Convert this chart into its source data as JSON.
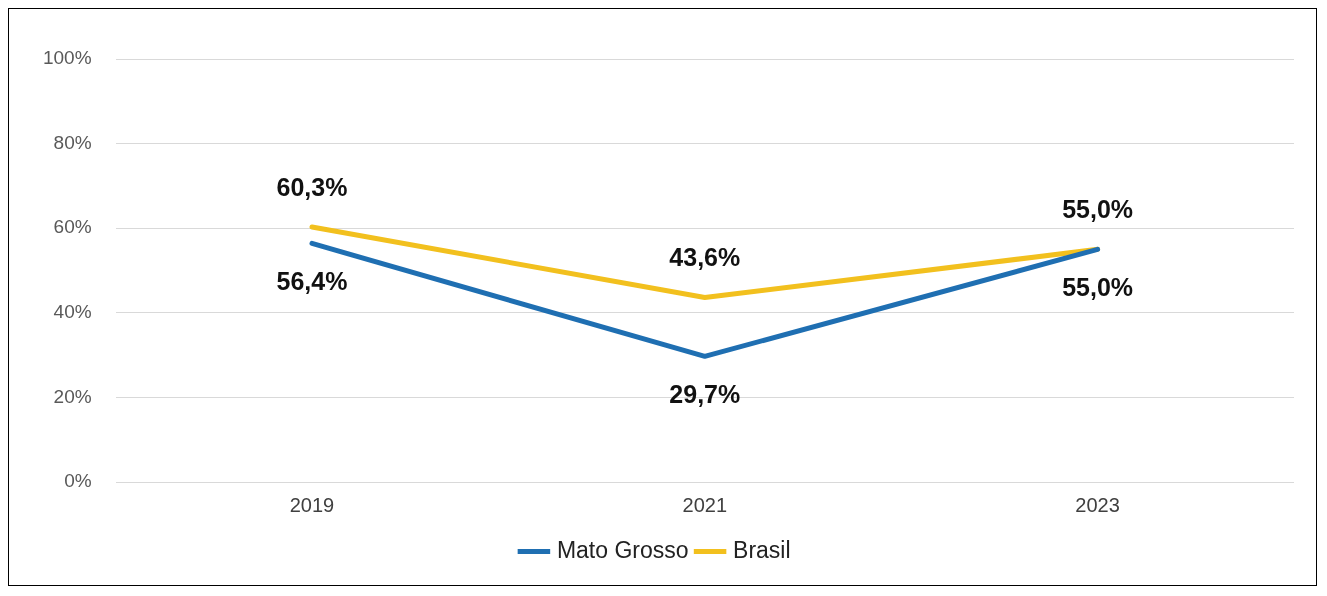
{
  "chart_data": {
    "type": "line",
    "categories": [
      "2019",
      "2021",
      "2023"
    ],
    "series": [
      {
        "name": "Mato Grosso",
        "color": "#1f6fb2",
        "values": [
          56.4,
          29.7,
          55.0
        ],
        "value_labels": [
          "56,4%",
          "29,7%",
          "55,0%"
        ]
      },
      {
        "name": "Brasil",
        "color": "#f2c01e",
        "values": [
          60.3,
          43.6,
          55.0
        ],
        "value_labels": [
          "60,3%",
          "43,6%",
          "55,0%"
        ]
      }
    ],
    "ylim": [
      0,
      100
    ],
    "yticks": [
      {
        "value": 0,
        "label": "0%"
      },
      {
        "value": 20,
        "label": "20%"
      },
      {
        "value": 40,
        "label": "40%"
      },
      {
        "value": 60,
        "label": "60%"
      },
      {
        "value": 80,
        "label": "80%"
      },
      {
        "value": 100,
        "label": "100%"
      }
    ],
    "grid": "y",
    "legend": "bottom",
    "marker": "none",
    "line_style": "solid"
  }
}
